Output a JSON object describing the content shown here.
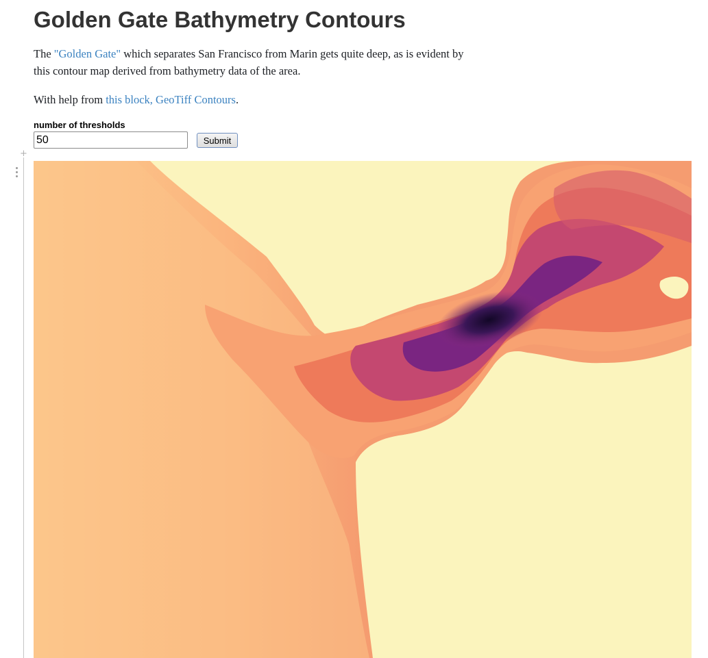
{
  "page": {
    "title": "Golden Gate Bathymetry Contours"
  },
  "intro": {
    "prefix": "The ",
    "link_text": "\"Golden Gate\"",
    "suffix": " which separates San Francisco from Marin gets quite deep, as is evident by this contour map derived from bathymetry data of the area."
  },
  "help": {
    "prefix": "With help from ",
    "link_text": "this block, GeoTiff Contours",
    "suffix": "."
  },
  "form": {
    "label": "number of thresholds",
    "value": "50",
    "submit_label": "Submit"
  },
  "colors": {
    "link": "#3b82c0",
    "land": "#fbf4bd",
    "shallow_water": "#fcca8e",
    "mid_water": "#f58a62",
    "deep_water": "#8c2b7d",
    "deepest_water": "#1c0d3a"
  },
  "icons": {
    "cell_add": "plus-icon",
    "cell_menu": "vertical-dots-icon"
  }
}
